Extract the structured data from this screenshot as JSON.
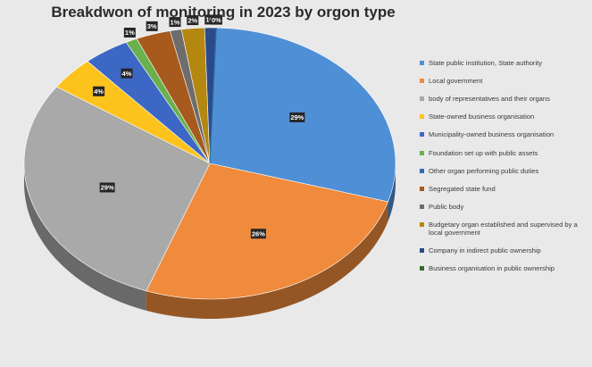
{
  "chart_data": {
    "type": "pie",
    "title": "Breakdwon of monitoring in 2023 by orgon type",
    "legend_position": "right",
    "slices": [
      {
        "name": "State public institution, State authority",
        "value": 29,
        "label": "29%",
        "color": "#4f8fd6"
      },
      {
        "name": "Local government",
        "value": 26,
        "label": "26%",
        "color": "#f08a3c"
      },
      {
        "name": "body of representatives and their organs",
        "value": 29,
        "label": "29%",
        "color": "#a9a9a9"
      },
      {
        "name": "State-owned business organisation",
        "value": 4,
        "label": "4%",
        "color": "#fcc31d"
      },
      {
        "name": "Municipality-owned business organisation",
        "value": 4,
        "label": "4%",
        "color": "#3d67c4"
      },
      {
        "name": "Foundation set up with public assets",
        "value": 1,
        "label": "1%",
        "color": "#6ab04c"
      },
      {
        "name": "Other organ performing public duties",
        "value": 0,
        "label": "0%",
        "color": "#2d6fb0"
      },
      {
        "name": "Segregated state fund",
        "value": 3,
        "label": "3%",
        "color": "#a65a1e"
      },
      {
        "name": "Public body",
        "value": 1,
        "label": "1%",
        "color": "#6d6d6d"
      },
      {
        "name": "Budgetary organ established and supervised by a local government",
        "value": 2,
        "label": "2%",
        "color": "#b38710"
      },
      {
        "name": "Company in indirect public ownership",
        "value": 1,
        "label": "1%",
        "color": "#2a4a8a"
      },
      {
        "name": "Business organisation in public ownership",
        "value": 0,
        "label": "0%",
        "color": "#3a6a2a"
      }
    ],
    "label_order": [
      "29%",
      "26%",
      "29%",
      "4%",
      "4%",
      "1%",
      "0%",
      "3%",
      "1%",
      "2%",
      "1%",
      "0%"
    ]
  }
}
